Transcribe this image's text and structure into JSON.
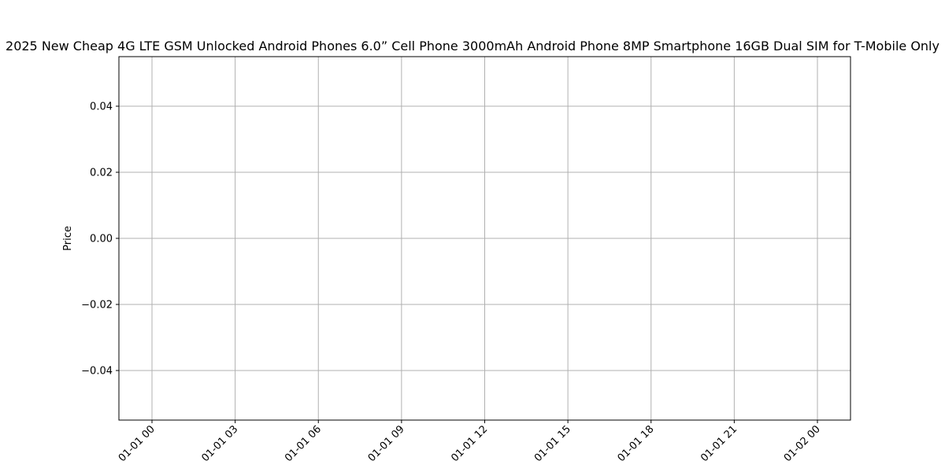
{
  "chart_data": {
    "type": "line",
    "title": "2025 New Cheap 4G LTE GSM Unlocked Android Phones 6.0” Cell Phone 3000mAh Android Phone 8MP Smartphone 16GB Dual SIM for T-Mobile Only",
    "xlabel": "",
    "ylabel": "Price",
    "x_tick_labels": [
      "01-01 00",
      "01-01 03",
      "01-01 06",
      "01-01 09",
      "01-01 12",
      "01-01 15",
      "01-01 18",
      "01-01 21",
      "01-02 00"
    ],
    "y_ticks": [
      0.04,
      0.02,
      0.0,
      -0.02,
      -0.04
    ],
    "y_tick_labels": [
      "0.04",
      "0.02",
      "0.00",
      "−0.02",
      "−0.04"
    ],
    "ylim": [
      -0.055,
      0.055
    ],
    "grid": true,
    "series": []
  }
}
